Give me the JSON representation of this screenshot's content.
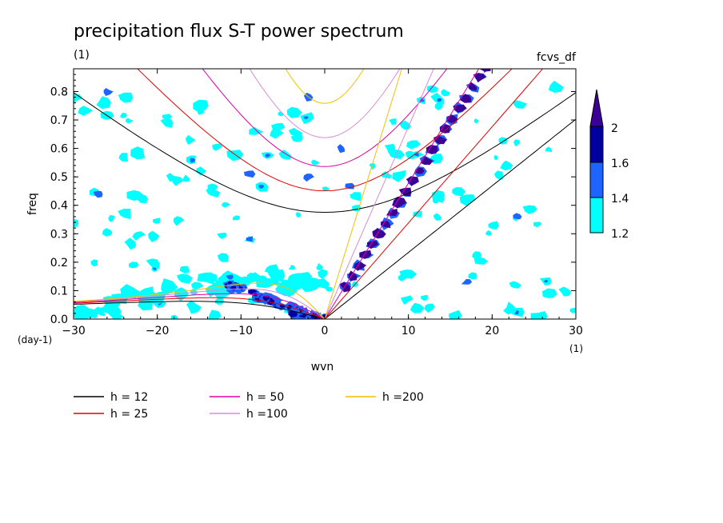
{
  "chart_data": {
    "type": "contour",
    "title": "precipitation flux S-T power spectrum",
    "unit_top_left": "(1)",
    "tag_top_right": "fcvs_df",
    "xlabel": "wvn",
    "ylabel": "freq",
    "y_unit": "(day-1)",
    "x_unit": "(1)",
    "xlim": [
      -30,
      30
    ],
    "ylim": [
      0,
      0.88
    ],
    "xticks": [
      -30,
      -20,
      -10,
      0,
      10,
      20,
      30
    ],
    "yticks": [
      0.0,
      0.1,
      0.2,
      0.3,
      0.4,
      0.5,
      0.6,
      0.7,
      0.8
    ],
    "colorbar": {
      "levels": [
        "1.2",
        "1.4",
        "1.6",
        "2"
      ],
      "colors": [
        "#00ffff",
        "#1e64ff",
        "#0000a0",
        "#3c0096"
      ]
    },
    "dispersion_curves": [
      {
        "label": "h = 12",
        "h": 12,
        "color": "#000000"
      },
      {
        "label": "h = 25",
        "h": 25,
        "color": "#e00000"
      },
      {
        "label": "h = 50",
        "h": 50,
        "color": "#e000a0"
      },
      {
        "label": "h =100",
        "h": 100,
        "color": "#d88cd8"
      },
      {
        "label": "h =200",
        "h": 200,
        "color": "#f0c000"
      }
    ]
  }
}
